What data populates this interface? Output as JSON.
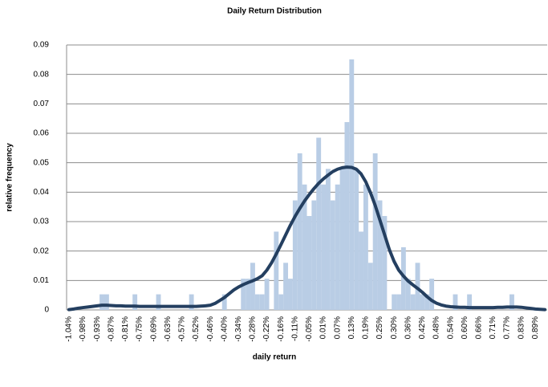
{
  "chart_data": {
    "type": "bar",
    "title": "Daily Return Distribution",
    "x_label": "daily return",
    "y_label": "relative frequency",
    "categories": [
      "-1.04%",
      null,
      null,
      "-0.98%",
      null,
      null,
      "-0.93%",
      null,
      null,
      "-0.87%",
      null,
      null,
      "-0.81%",
      null,
      null,
      "-0.75%",
      null,
      null,
      "-0.69%",
      null,
      null,
      "-0.63%",
      null,
      null,
      "-0.57%",
      null,
      null,
      "-0.52%",
      null,
      null,
      "-0.46%",
      null,
      null,
      "-0.40%",
      null,
      null,
      "-0.34%",
      null,
      null,
      "-0.28%",
      null,
      null,
      "-0.22%",
      null,
      null,
      "-0.16%",
      null,
      null,
      "-0.11%",
      null,
      null,
      "-0.05%",
      null,
      null,
      "0.01%",
      null,
      null,
      "0.07%",
      null,
      null,
      "0.13%",
      null,
      null,
      "0.19%",
      null,
      null,
      "0.25%",
      null,
      null,
      "0.30%",
      null,
      null,
      "0.36%",
      null,
      null,
      "0.42%",
      null,
      null,
      "0.48%",
      null,
      null,
      "0.54%",
      null,
      null,
      "0.60%",
      null,
      null,
      "0.66%",
      null,
      null,
      "0.71%",
      null,
      null,
      "0.77%",
      null,
      null,
      "0.83%",
      null,
      null,
      "0.89%",
      null,
      null
    ],
    "series": [
      {
        "type": "bar",
        "color": "#b9cde5",
        "values": [
          0,
          0,
          0,
          0,
          0,
          0,
          0,
          0.0053,
          0.0053,
          0,
          0,
          0,
          0,
          0,
          0.0053,
          0,
          0,
          0,
          0,
          0.0053,
          0,
          0,
          0,
          0,
          0,
          0,
          0.0053,
          0,
          0,
          0,
          0,
          0,
          0,
          0.0053,
          0,
          0,
          0,
          0.0106,
          0.0106,
          0.016,
          0.0053,
          0.0053,
          0.0106,
          0,
          0.0266,
          0.0053,
          0.016,
          0.0106,
          0.0372,
          0.0532,
          0.0426,
          0.0319,
          0.0372,
          0.0585,
          0.0426,
          0.0479,
          0.0372,
          0.0426,
          0.0479,
          0.0638,
          0.0851,
          0.0479,
          0.0266,
          0.0426,
          0.016,
          0.0532,
          0.0372,
          0.0319,
          0,
          0.0053,
          0.0053,
          0.0213,
          0.0106,
          0.0053,
          0.016,
          0.0053,
          0.0053,
          0.0106,
          0,
          0,
          0,
          0,
          0.0053,
          0,
          0,
          0.0053,
          0,
          0,
          0,
          0,
          0,
          0,
          0,
          0,
          0.0053,
          0,
          0,
          0,
          0,
          0,
          0,
          0
        ]
      },
      {
        "type": "line",
        "color": "#243f60",
        "values": [
          0.0001,
          0.0003,
          0.0006,
          0.0008,
          0.001,
          0.0012,
          0.0014,
          0.0016,
          0.0016,
          0.0015,
          0.0014,
          0.0014,
          0.0013,
          0.0013,
          0.0013,
          0.0012,
          0.0012,
          0.0012,
          0.0012,
          0.0012,
          0.0012,
          0.0012,
          0.0012,
          0.0012,
          0.0012,
          0.0012,
          0.0012,
          0.0012,
          0.0013,
          0.0014,
          0.0016,
          0.0022,
          0.0032,
          0.0042,
          0.0055,
          0.0068,
          0.0078,
          0.0086,
          0.0093,
          0.0099,
          0.0106,
          0.0116,
          0.0135,
          0.016,
          0.019,
          0.0222,
          0.0255,
          0.0288,
          0.0318,
          0.0345,
          0.037,
          0.0392,
          0.0412,
          0.043,
          0.0445,
          0.0458,
          0.047,
          0.0478,
          0.0483,
          0.0485,
          0.0484,
          0.0478,
          0.0462,
          0.0435,
          0.0398,
          0.0355,
          0.0305,
          0.0255,
          0.0205,
          0.0165,
          0.0135,
          0.0115,
          0.0098,
          0.0085,
          0.0073,
          0.006,
          0.0045,
          0.0032,
          0.0023,
          0.0017,
          0.0013,
          0.0011,
          0.001,
          0.0009,
          0.0009,
          0.0008,
          0.0008,
          0.0008,
          0.0008,
          0.0008,
          0.0008,
          0.0009,
          0.0009,
          0.001,
          0.001,
          0.001,
          0.0009,
          0.0007,
          0.0005,
          0.0003,
          0.0002,
          0.0001
        ]
      }
    ],
    "ylim": [
      0,
      0.09
    ],
    "yticks": [
      0,
      0.01,
      0.02,
      0.03,
      0.04,
      0.05,
      0.06,
      0.07,
      0.08,
      0.09
    ],
    "grid": true
  }
}
